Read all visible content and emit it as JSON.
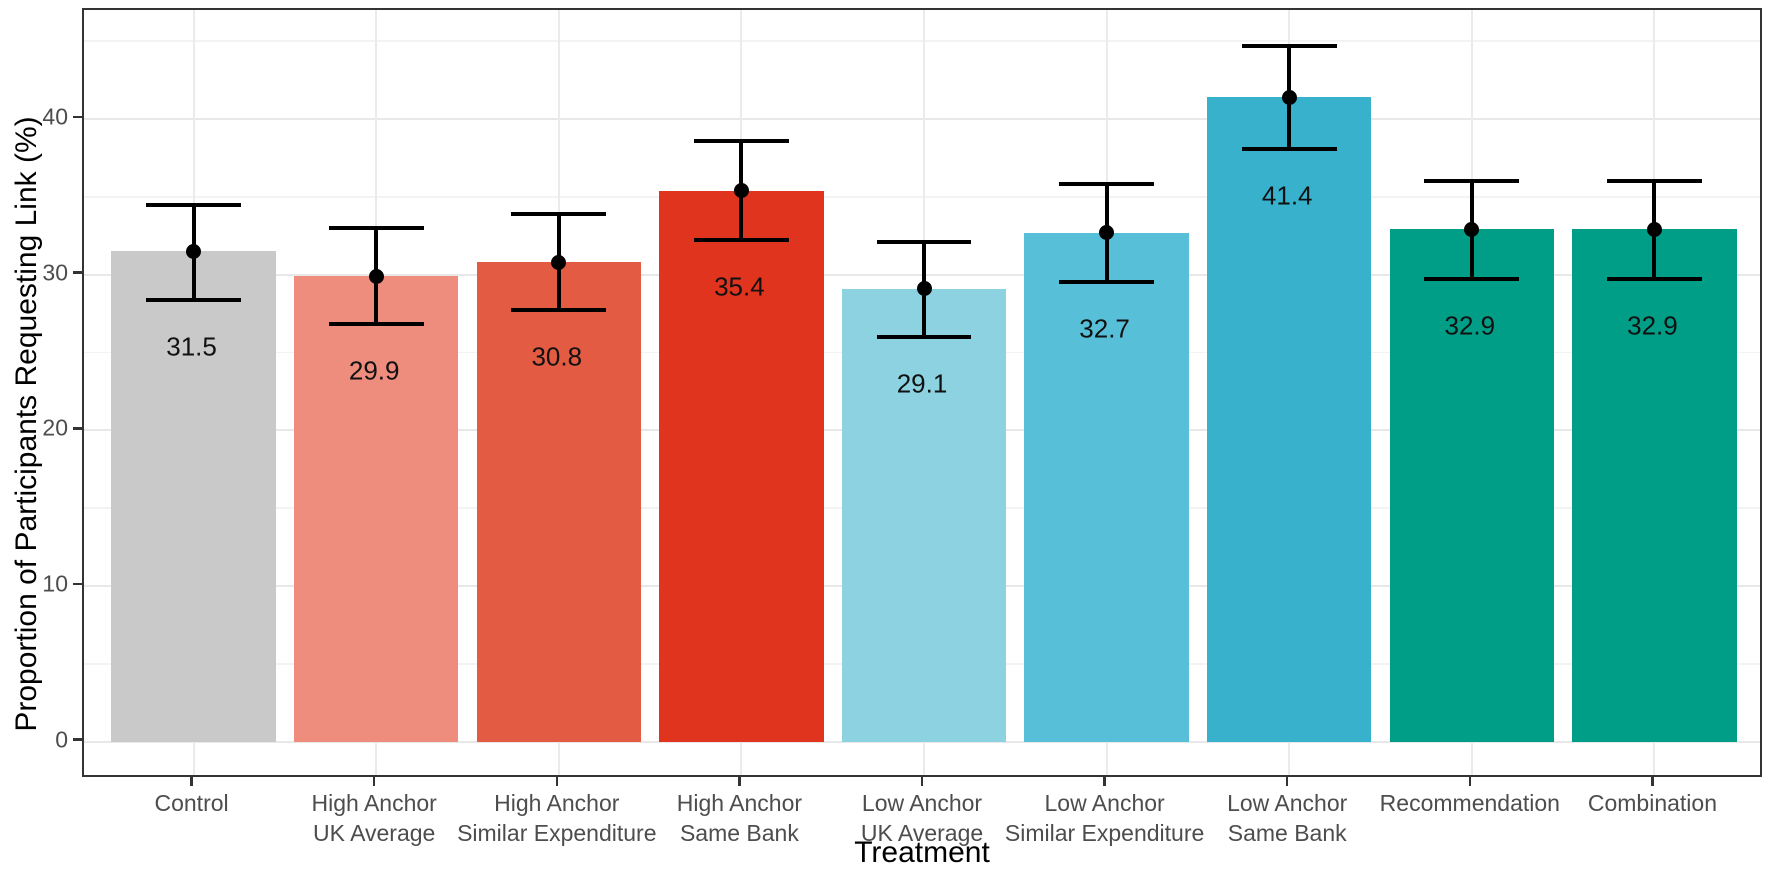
{
  "figure": {
    "type": "ggplot-style bar chart with error bars",
    "background": "#ffffff",
    "panel_border_color": "#333333",
    "gridline_major_color": "#e8e8e8",
    "gridline_minor_color": "#f3f3f3",
    "tick_color": "#333333",
    "tick_label_color": "#4d4d4d",
    "title_color": "#000000"
  },
  "chart_data": {
    "type": "bar",
    "title": "",
    "xlabel": "Treatment",
    "ylabel": "Proportion of Participants Requesting Link (%)",
    "categories": [
      [
        "Control"
      ],
      [
        "High Anchor",
        "UK Average"
      ],
      [
        "High Anchor",
        "Similar Expenditure"
      ],
      [
        "High Anchor",
        "Same Bank"
      ],
      [
        "Low Anchor",
        "UK Average"
      ],
      [
        "Low Anchor",
        "Similar Expenditure"
      ],
      [
        "Low Anchor",
        "Same Bank"
      ],
      [
        "Recommendation"
      ],
      [
        "Combination"
      ]
    ],
    "values": [
      31.5,
      29.9,
      30.8,
      35.4,
      29.1,
      32.7,
      41.4,
      32.9,
      32.9
    ],
    "bar_labels": [
      "31.5",
      "29.9",
      "30.8",
      "35.4",
      "29.1",
      "32.7",
      "41.4",
      "32.9",
      "32.9"
    ],
    "error_low": [
      28.4,
      26.8,
      27.7,
      32.2,
      26.0,
      29.5,
      38.1,
      29.7,
      29.7
    ],
    "error_high": [
      34.5,
      33.0,
      33.9,
      38.6,
      32.1,
      35.8,
      44.7,
      36.0,
      36.0
    ],
    "bar_colors": [
      "#C9C9C9",
      "#EE8C7D",
      "#E35B42",
      "#E0341F",
      "#8DD2E0",
      "#57C0D8",
      "#38B1CC",
      "#009E87",
      "#009E87"
    ],
    "error_bar_color": "#000000",
    "point_color": "#000000",
    "yticks": [
      0,
      10,
      20,
      30,
      40
    ],
    "yticks_minor": [
      5,
      15,
      25,
      35,
      45
    ],
    "ylim": [
      -2.4,
      47.0
    ],
    "grid": true,
    "legend": false
  }
}
